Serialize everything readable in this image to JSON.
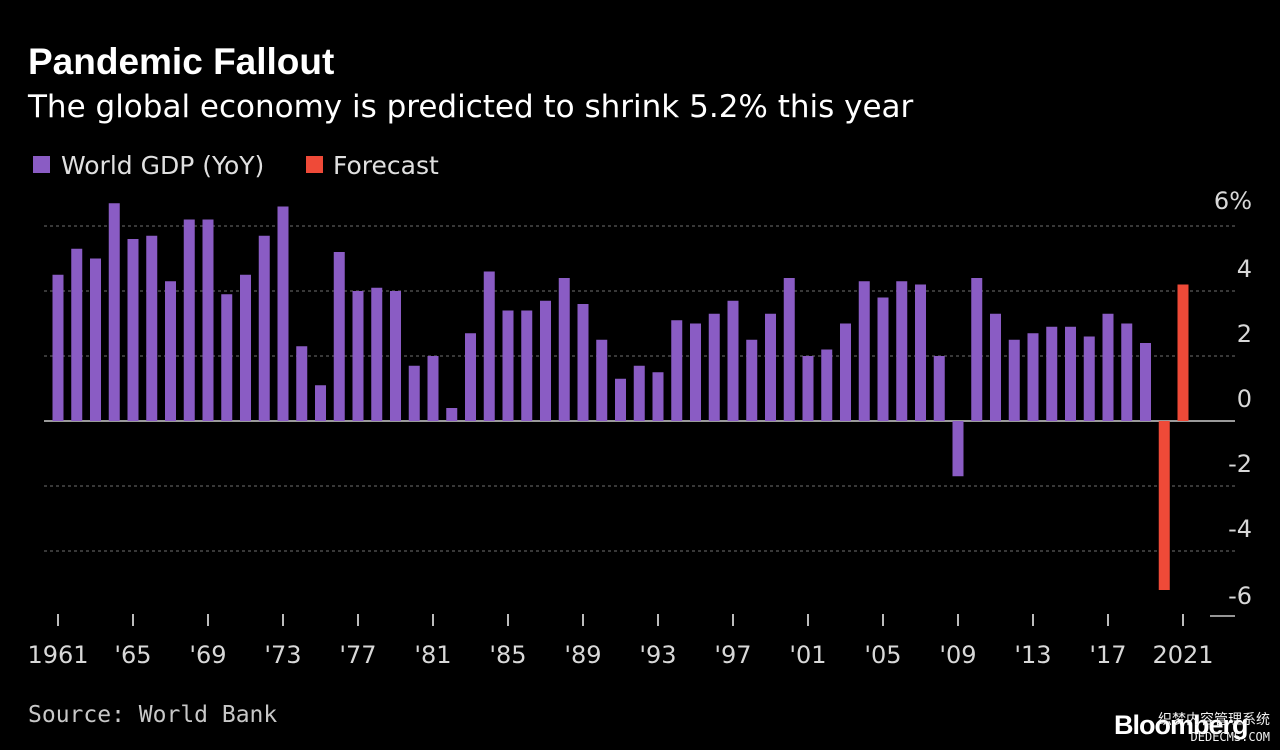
{
  "chart_data": {
    "type": "bar",
    "title": "Pandemic Fallout",
    "subtitle": "The global economy is predicted to shrink 5.2% this year",
    "source": "Source: World Bank",
    "brand": "Bloomberg",
    "watermark_text": "织梦内容管理系统",
    "watermark_url": "DEDECMS.COM",
    "xlabel": "",
    "ylabel": "",
    "ylim": [
      -6,
      6
    ],
    "y_ticks": [
      6,
      4,
      2,
      0,
      -2,
      -4,
      -6
    ],
    "y_tick_labels": [
      "6%",
      "4",
      "2",
      "0",
      "-2",
      "-4",
      "-6"
    ],
    "x_tick_years": [
      1961,
      1965,
      1969,
      1973,
      1977,
      1981,
      1985,
      1989,
      1993,
      1997,
      2001,
      2005,
      2009,
      2013,
      2017,
      2021
    ],
    "x_tick_labels": [
      "1961",
      "'65",
      "'69",
      "'73",
      "'77",
      "'81",
      "'85",
      "'89",
      "'93",
      "'97",
      "'01",
      "'05",
      "'09",
      "'13",
      "'17",
      "2021"
    ],
    "colors": {
      "background": "#000000",
      "historical": "#8a5cc4",
      "forecast": "#ef4a38",
      "text": "#ffffff",
      "muted_text": "#c8c8c8",
      "grid": "#707070",
      "zero_line": "#9a9a9a"
    },
    "series": [
      {
        "name": "World GDP (YoY)",
        "color": "#8a5cc4",
        "x": [
          1961,
          1962,
          1963,
          1964,
          1965,
          1966,
          1967,
          1968,
          1969,
          1970,
          1971,
          1972,
          1973,
          1974,
          1975,
          1976,
          1977,
          1978,
          1979,
          1980,
          1981,
          1982,
          1983,
          1984,
          1985,
          1986,
          1987,
          1988,
          1989,
          1990,
          1991,
          1992,
          1993,
          1994,
          1995,
          1996,
          1997,
          1998,
          1999,
          2000,
          2001,
          2002,
          2003,
          2004,
          2005,
          2006,
          2007,
          2008,
          2009,
          2010,
          2011,
          2012,
          2013,
          2014,
          2015,
          2016,
          2017,
          2018,
          2019
        ],
        "values": [
          4.5,
          5.3,
          5.0,
          6.7,
          5.6,
          5.7,
          4.3,
          6.2,
          6.2,
          3.9,
          4.5,
          5.7,
          6.6,
          2.3,
          1.1,
          5.2,
          4.0,
          4.1,
          4.0,
          1.7,
          2.0,
          0.4,
          2.7,
          4.6,
          3.4,
          3.4,
          3.7,
          4.4,
          3.6,
          2.5,
          1.3,
          1.7,
          1.5,
          3.1,
          3.0,
          3.3,
          3.7,
          2.5,
          3.3,
          4.4,
          2.0,
          2.2,
          3.0,
          4.3,
          3.8,
          4.3,
          4.2,
          2.0,
          -1.7,
          4.4,
          3.3,
          2.5,
          2.7,
          2.9,
          2.9,
          2.6,
          3.3,
          3.0,
          2.4
        ]
      },
      {
        "name": "Forecast",
        "color": "#ef4a38",
        "x": [
          2020,
          2021
        ],
        "values": [
          -5.2,
          4.2
        ]
      }
    ]
  }
}
